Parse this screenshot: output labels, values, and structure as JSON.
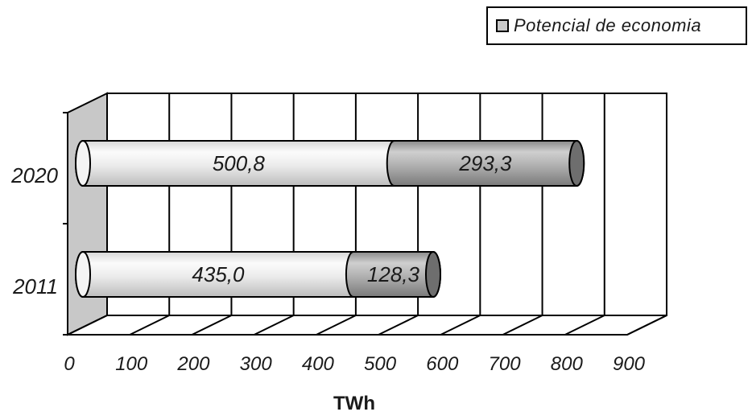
{
  "legend": {
    "label": "Potencial de economia",
    "swatch_color": "#c8c8c8"
  },
  "chart_data": {
    "type": "bar",
    "orientation": "horizontal",
    "stacked": true,
    "style": "3d-cylinder",
    "categories": [
      "2020",
      "2011"
    ],
    "series": [
      {
        "values": [
          500.8,
          435.0
        ],
        "labels": [
          "500,8",
          "435,0"
        ],
        "color": "#f0f0f0"
      },
      {
        "name": "Potencial de economia",
        "values": [
          293.3,
          128.3
        ],
        "labels": [
          "293,3",
          "128,3"
        ],
        "color": "#b8b8b8"
      }
    ],
    "xlabel": "TWh",
    "xlim": [
      0,
      900
    ],
    "xticks": [
      "0",
      "100",
      "200",
      "300",
      "400",
      "500",
      "600",
      "700",
      "800",
      "900"
    ],
    "grid": true,
    "legend_position": "top-right"
  }
}
